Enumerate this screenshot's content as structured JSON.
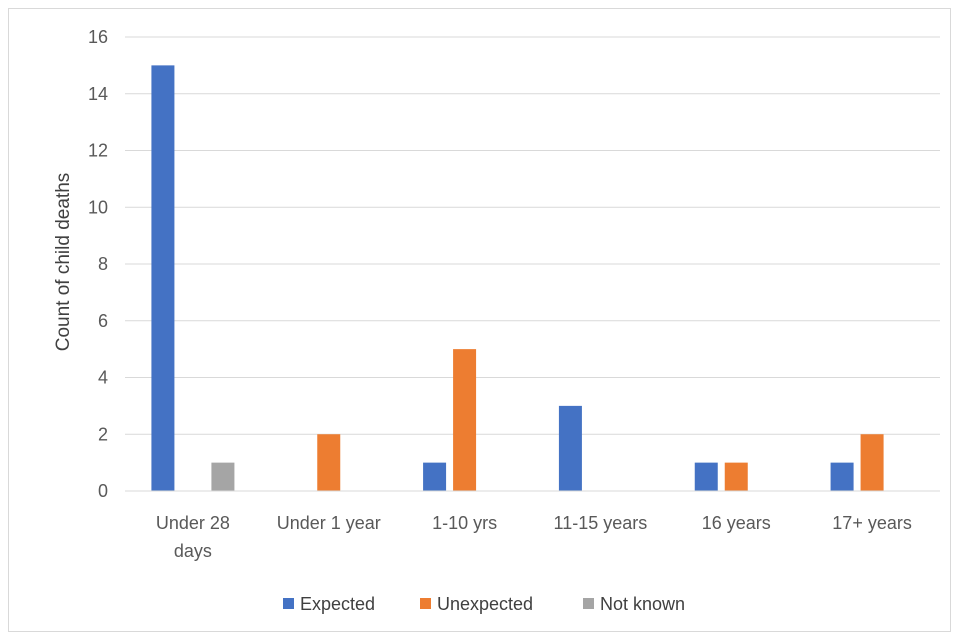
{
  "chart_data": {
    "type": "bar",
    "title": "",
    "xlabel": "",
    "ylabel": "Count of child deaths",
    "ylim": [
      0,
      16
    ],
    "yticks": [
      0,
      2,
      4,
      6,
      8,
      10,
      12,
      14,
      16
    ],
    "categories": [
      [
        "Under 28",
        "days"
      ],
      [
        "Under 1 year"
      ],
      [
        "1-10 yrs"
      ],
      [
        "11-15 years"
      ],
      [
        "16 years"
      ],
      [
        "17+ years"
      ]
    ],
    "series": [
      {
        "name": "Expected",
        "color": "#4472C4",
        "values": [
          15,
          0,
          1,
          3,
          1,
          1
        ]
      },
      {
        "name": "Unexpected",
        "color": "#ED7D31",
        "values": [
          0,
          2,
          5,
          0,
          1,
          2
        ]
      },
      {
        "name": "Not known",
        "color": "#A5A5A5",
        "values": [
          1,
          0,
          0,
          0,
          0,
          0
        ]
      }
    ],
    "grid": true,
    "legend_position": "bottom"
  }
}
